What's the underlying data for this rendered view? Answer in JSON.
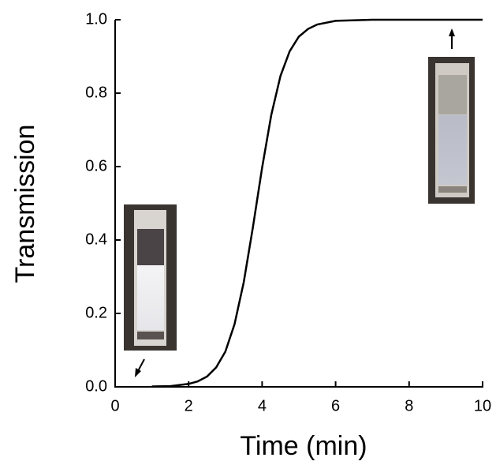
{
  "chart_data": {
    "type": "line",
    "x_label": "Time (min)",
    "y_label": "Transmission",
    "x": [
      1,
      1.5,
      2,
      2.25,
      2.5,
      2.75,
      3,
      3.25,
      3.5,
      3.75,
      4,
      4.25,
      4.5,
      4.75,
      5,
      5.25,
      5.5,
      6,
      7,
      8,
      9,
      10
    ],
    "series": [
      {
        "color": "#000000",
        "values": [
          0.001,
          0.002,
          0.008,
          0.015,
          0.028,
          0.053,
          0.096,
          0.171,
          0.285,
          0.435,
          0.597,
          0.741,
          0.847,
          0.914,
          0.954,
          0.975,
          0.987,
          0.997,
          1.0,
          1.0,
          1.0,
          1.0
        ]
      }
    ],
    "xlim": [
      0,
      10
    ],
    "xticks": [
      0,
      2,
      4,
      6,
      8,
      10
    ],
    "ylim": [
      0,
      1
    ],
    "yticks": [
      {
        "value": 0,
        "label": "0.0"
      },
      0.2,
      0.4,
      0.6,
      0.8,
      {
        "value": 1,
        "label": "1.0"
      }
    ],
    "grid": false
  }
}
